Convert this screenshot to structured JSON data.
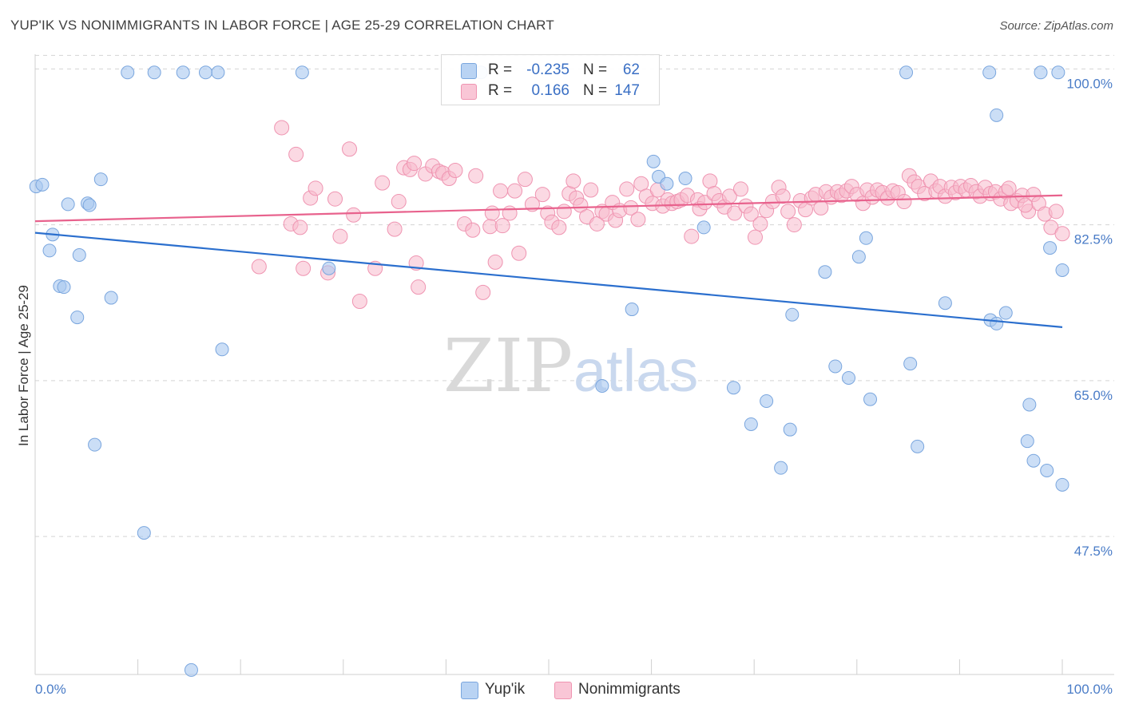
{
  "title": "YUP'IK VS NONIMMIGRANTS IN LABOR FORCE | AGE 25-29 CORRELATION CHART",
  "source": "Source: ZipAtlas.com",
  "watermark": {
    "zip": "ZIP",
    "atlas": "atlas"
  },
  "stats": [
    {
      "r_label": "R =",
      "r_value": "-0.235",
      "n_label": "N =",
      "n_value": "62"
    },
    {
      "r_label": "R =",
      "r_value": "0.166",
      "n_label": "N =",
      "n_value": "147"
    }
  ],
  "legend": [
    {
      "label": "Yup'ik"
    },
    {
      "label": "Nonimmigrants"
    }
  ],
  "colors": {
    "blue_fill": "#a9c8f0",
    "blue_stroke": "#7aa6de",
    "blue_line": "#2b6fce",
    "pink_fill": "#f7b9cc",
    "pink_stroke": "#ef94b1",
    "pink_line": "#e8628d",
    "grid": "#d4d4d4",
    "tick_label": "#4a7cc7"
  },
  "chart_data": {
    "type": "scatter",
    "title": "YUP'IK VS NONIMMIGRANTS IN LABOR FORCE | AGE 25-29 CORRELATION CHART",
    "xlabel": "",
    "ylabel": "In Labor Force | Age 25-29",
    "xlim": [
      0,
      100
    ],
    "ylim": [
      32,
      102
    ],
    "x_ticks": [
      "0.0%",
      "100.0%"
    ],
    "y_ticks": [
      {
        "value": 100.0,
        "label": "100.0%"
      },
      {
        "value": 82.5,
        "label": "82.5%"
      },
      {
        "value": 65.0,
        "label": "65.0%"
      },
      {
        "value": 47.5,
        "label": "47.5%"
      }
    ],
    "grid": true,
    "legend_position": "bottom-center",
    "series": [
      {
        "name": "Yup'ik",
        "trend": [
          [
            0,
            81.6
          ],
          [
            100,
            71.0
          ]
        ],
        "points": [
          [
            0.1,
            86.8
          ],
          [
            0.7,
            87.0
          ],
          [
            1.7,
            81.4
          ],
          [
            1.4,
            79.6
          ],
          [
            2.4,
            75.6
          ],
          [
            2.8,
            75.5
          ],
          [
            3.2,
            84.8
          ],
          [
            4.1,
            72.1
          ],
          [
            4.3,
            79.1
          ],
          [
            5.1,
            84.9
          ],
          [
            5.3,
            84.7
          ],
          [
            5.8,
            57.8
          ],
          [
            6.4,
            87.6
          ],
          [
            7.4,
            74.3
          ],
          [
            9.0,
            99.6
          ],
          [
            10.6,
            47.9
          ],
          [
            11.6,
            99.6
          ],
          [
            14.4,
            99.6
          ],
          [
            15.2,
            32.5
          ],
          [
            16.6,
            99.6
          ],
          [
            17.8,
            99.6
          ],
          [
            18.2,
            68.5
          ],
          [
            26.0,
            99.6
          ],
          [
            28.6,
            77.6
          ],
          [
            43.4,
            99.6
          ],
          [
            55.2,
            64.4
          ],
          [
            58.1,
            73.0
          ],
          [
            60.2,
            89.6
          ],
          [
            60.7,
            87.9
          ],
          [
            61.5,
            87.1
          ],
          [
            63.3,
            87.7
          ],
          [
            65.1,
            82.2
          ],
          [
            68.0,
            64.2
          ],
          [
            69.7,
            60.1
          ],
          [
            71.2,
            62.7
          ],
          [
            72.6,
            55.2
          ],
          [
            73.5,
            59.5
          ],
          [
            73.7,
            72.4
          ],
          [
            76.9,
            77.2
          ],
          [
            77.9,
            66.6
          ],
          [
            79.2,
            65.3
          ],
          [
            80.2,
            78.9
          ],
          [
            80.9,
            81.0
          ],
          [
            81.3,
            62.9
          ],
          [
            84.8,
            99.6
          ],
          [
            85.2,
            66.9
          ],
          [
            85.9,
            57.6
          ],
          [
            88.6,
            73.7
          ],
          [
            92.9,
            99.6
          ],
          [
            93.0,
            71.8
          ],
          [
            93.6,
            71.4
          ],
          [
            93.6,
            94.8
          ],
          [
            94.5,
            72.6
          ],
          [
            96.6,
            58.2
          ],
          [
            96.8,
            62.3
          ],
          [
            97.2,
            56.0
          ],
          [
            97.9,
            99.6
          ],
          [
            98.5,
            54.9
          ],
          [
            98.8,
            79.9
          ],
          [
            100.0,
            53.3
          ],
          [
            100.0,
            77.4
          ],
          [
            99.6,
            99.6
          ]
        ]
      },
      {
        "name": "Nonimmigrants",
        "trend": [
          [
            0,
            82.9
          ],
          [
            100,
            85.8
          ]
        ],
        "points": [
          [
            21.8,
            77.8
          ],
          [
            24.0,
            93.4
          ],
          [
            24.9,
            82.6
          ],
          [
            25.4,
            90.4
          ],
          [
            25.8,
            82.2
          ],
          [
            26.1,
            77.6
          ],
          [
            26.8,
            85.5
          ],
          [
            27.3,
            86.6
          ],
          [
            28.5,
            77.1
          ],
          [
            29.2,
            85.4
          ],
          [
            29.7,
            81.2
          ],
          [
            30.6,
            91.0
          ],
          [
            31.0,
            83.6
          ],
          [
            31.6,
            73.9
          ],
          [
            33.1,
            77.6
          ],
          [
            33.8,
            87.2
          ],
          [
            35.0,
            82.0
          ],
          [
            35.4,
            85.1
          ],
          [
            35.9,
            88.9
          ],
          [
            36.5,
            88.7
          ],
          [
            36.9,
            89.4
          ],
          [
            37.1,
            78.2
          ],
          [
            37.3,
            75.5
          ],
          [
            38.0,
            88.2
          ],
          [
            38.7,
            89.1
          ],
          [
            39.3,
            88.5
          ],
          [
            39.7,
            88.3
          ],
          [
            40.3,
            87.7
          ],
          [
            40.9,
            88.6
          ],
          [
            41.8,
            82.6
          ],
          [
            42.6,
            81.9
          ],
          [
            42.9,
            88.0
          ],
          [
            43.6,
            74.9
          ],
          [
            44.3,
            82.3
          ],
          [
            44.5,
            83.8
          ],
          [
            44.8,
            78.3
          ],
          [
            45.3,
            86.3
          ],
          [
            45.5,
            82.4
          ],
          [
            46.2,
            83.8
          ],
          [
            46.7,
            86.3
          ],
          [
            47.1,
            79.3
          ],
          [
            47.7,
            87.6
          ],
          [
            48.4,
            84.8
          ],
          [
            49.4,
            85.9
          ],
          [
            49.9,
            83.8
          ],
          [
            50.3,
            82.8
          ],
          [
            51.0,
            82.2
          ],
          [
            51.5,
            84.0
          ],
          [
            52.0,
            86.0
          ],
          [
            52.4,
            87.4
          ],
          [
            52.7,
            85.5
          ],
          [
            53.1,
            84.7
          ],
          [
            53.7,
            83.4
          ],
          [
            54.1,
            86.4
          ],
          [
            54.7,
            82.6
          ],
          [
            55.2,
            84.0
          ],
          [
            55.6,
            83.7
          ],
          [
            56.2,
            85.0
          ],
          [
            56.5,
            83.0
          ],
          [
            56.9,
            84.1
          ],
          [
            57.6,
            86.5
          ],
          [
            58.0,
            84.4
          ],
          [
            58.7,
            83.1
          ],
          [
            59.0,
            87.1
          ],
          [
            59.5,
            85.7
          ],
          [
            60.1,
            84.9
          ],
          [
            60.6,
            86.4
          ],
          [
            61.1,
            84.6
          ],
          [
            61.6,
            85.3
          ],
          [
            62.0,
            84.9
          ],
          [
            62.5,
            85.1
          ],
          [
            62.9,
            85.3
          ],
          [
            63.5,
            85.8
          ],
          [
            63.9,
            81.2
          ],
          [
            64.5,
            85.3
          ],
          [
            64.7,
            84.3
          ],
          [
            65.2,
            85.0
          ],
          [
            65.7,
            87.4
          ],
          [
            66.1,
            86.0
          ],
          [
            66.6,
            85.2
          ],
          [
            67.1,
            84.5
          ],
          [
            67.6,
            85.7
          ],
          [
            68.1,
            83.8
          ],
          [
            68.7,
            86.5
          ],
          [
            69.2,
            84.6
          ],
          [
            69.7,
            83.7
          ],
          [
            70.1,
            81.1
          ],
          [
            70.6,
            82.6
          ],
          [
            71.2,
            84.1
          ],
          [
            71.8,
            85.1
          ],
          [
            72.4,
            86.7
          ],
          [
            72.8,
            85.7
          ],
          [
            73.3,
            84.0
          ],
          [
            73.9,
            82.5
          ],
          [
            74.5,
            85.2
          ],
          [
            75.0,
            84.2
          ],
          [
            75.6,
            85.5
          ],
          [
            76.0,
            85.9
          ],
          [
            76.5,
            84.4
          ],
          [
            77.0,
            86.2
          ],
          [
            77.5,
            85.6
          ],
          [
            78.1,
            86.2
          ],
          [
            78.5,
            85.8
          ],
          [
            79.0,
            86.3
          ],
          [
            79.5,
            86.8
          ],
          [
            80.0,
            85.9
          ],
          [
            80.6,
            84.9
          ],
          [
            81.0,
            86.4
          ],
          [
            81.5,
            85.6
          ],
          [
            82.0,
            86.4
          ],
          [
            82.5,
            86.1
          ],
          [
            83.0,
            85.5
          ],
          [
            83.5,
            86.3
          ],
          [
            84.0,
            86.1
          ],
          [
            84.6,
            85.1
          ],
          [
            85.1,
            88.0
          ],
          [
            85.6,
            87.3
          ],
          [
            86.0,
            86.8
          ],
          [
            86.6,
            86.0
          ],
          [
            87.2,
            87.4
          ],
          [
            87.7,
            86.3
          ],
          [
            88.1,
            86.8
          ],
          [
            88.6,
            85.7
          ],
          [
            89.2,
            86.7
          ],
          [
            89.6,
            86.1
          ],
          [
            90.1,
            86.8
          ],
          [
            90.6,
            86.4
          ],
          [
            91.1,
            86.9
          ],
          [
            91.6,
            86.2
          ],
          [
            92.0,
            85.7
          ],
          [
            92.5,
            86.7
          ],
          [
            93.0,
            86.0
          ],
          [
            93.5,
            86.2
          ],
          [
            94.0,
            85.4
          ],
          [
            94.5,
            86.2
          ],
          [
            95.0,
            84.9
          ],
          [
            95.6,
            85.2
          ],
          [
            96.1,
            85.8
          ],
          [
            96.7,
            84.0
          ],
          [
            97.2,
            85.9
          ],
          [
            97.7,
            84.9
          ],
          [
            98.3,
            83.7
          ],
          [
            98.9,
            82.2
          ],
          [
            99.4,
            84.0
          ],
          [
            100.0,
            81.5
          ],
          [
            96.4,
            84.7
          ],
          [
            94.8,
            86.6
          ]
        ]
      }
    ]
  }
}
